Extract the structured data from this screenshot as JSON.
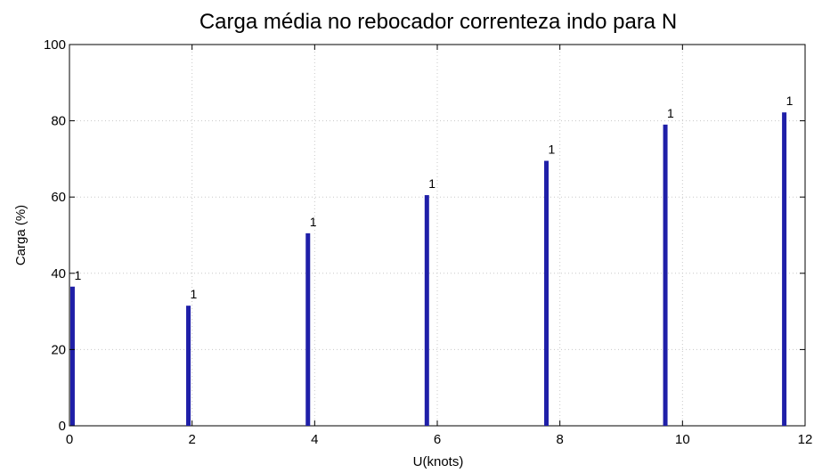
{
  "chart_data": {
    "type": "bar",
    "title": "Carga média no rebocador correnteza indo para N",
    "xlabel": "U(knots)",
    "ylabel": "Carga (%)",
    "xlim": [
      0,
      12
    ],
    "ylim": [
      0,
      100
    ],
    "xticks": [
      "0",
      "2",
      "4",
      "6",
      "8",
      "10",
      "12"
    ],
    "yticks": [
      "0",
      "20",
      "40",
      "60",
      "80",
      "100"
    ],
    "grid": true,
    "series": [
      {
        "color": "#1f1fa8",
        "points": [
          {
            "x": 0.05,
            "y": 36.5,
            "label": "1"
          },
          {
            "x": 1.94,
            "y": 31.5,
            "label": "1"
          },
          {
            "x": 3.89,
            "y": 50.5,
            "label": "1"
          },
          {
            "x": 5.83,
            "y": 60.5,
            "label": "1"
          },
          {
            "x": 7.78,
            "y": 69.5,
            "label": "1"
          },
          {
            "x": 9.72,
            "y": 79.0,
            "label": "1"
          },
          {
            "x": 11.66,
            "y": 82.2,
            "label": "1"
          }
        ]
      }
    ]
  }
}
